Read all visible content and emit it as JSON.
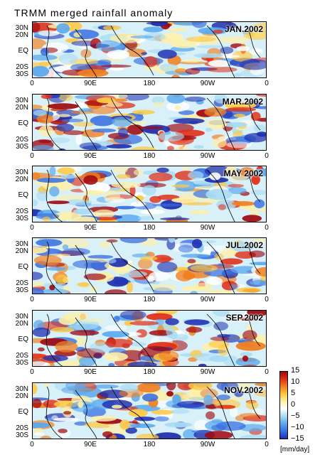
{
  "title": "TRMM merged rainfall anomaly",
  "panels": [
    {
      "label": "JAN.2002"
    },
    {
      "label": "MAR.2002"
    },
    {
      "label": "MAY 2002"
    },
    {
      "label": "JUL.2002"
    },
    {
      "label": "SEP.2002"
    },
    {
      "label": "NOV.2002"
    }
  ],
  "lat_labels": [
    "30N",
    "20N",
    "EQ",
    "20S",
    "30S"
  ],
  "lon_labels": [
    "0",
    "90E",
    "180",
    "90W",
    "0"
  ],
  "colorbar": {
    "labels": [
      "15",
      "10",
      "5",
      "0",
      "−5",
      "−10",
      "−15"
    ],
    "unit": "[mm/day]",
    "colors": [
      "#2030b0",
      "#3a70e0",
      "#5aa8ee",
      "#a8dcf4",
      "#ffffff",
      "#fff0a8",
      "#ffc840",
      "#f08020",
      "#e03018",
      "#a00810"
    ]
  }
}
